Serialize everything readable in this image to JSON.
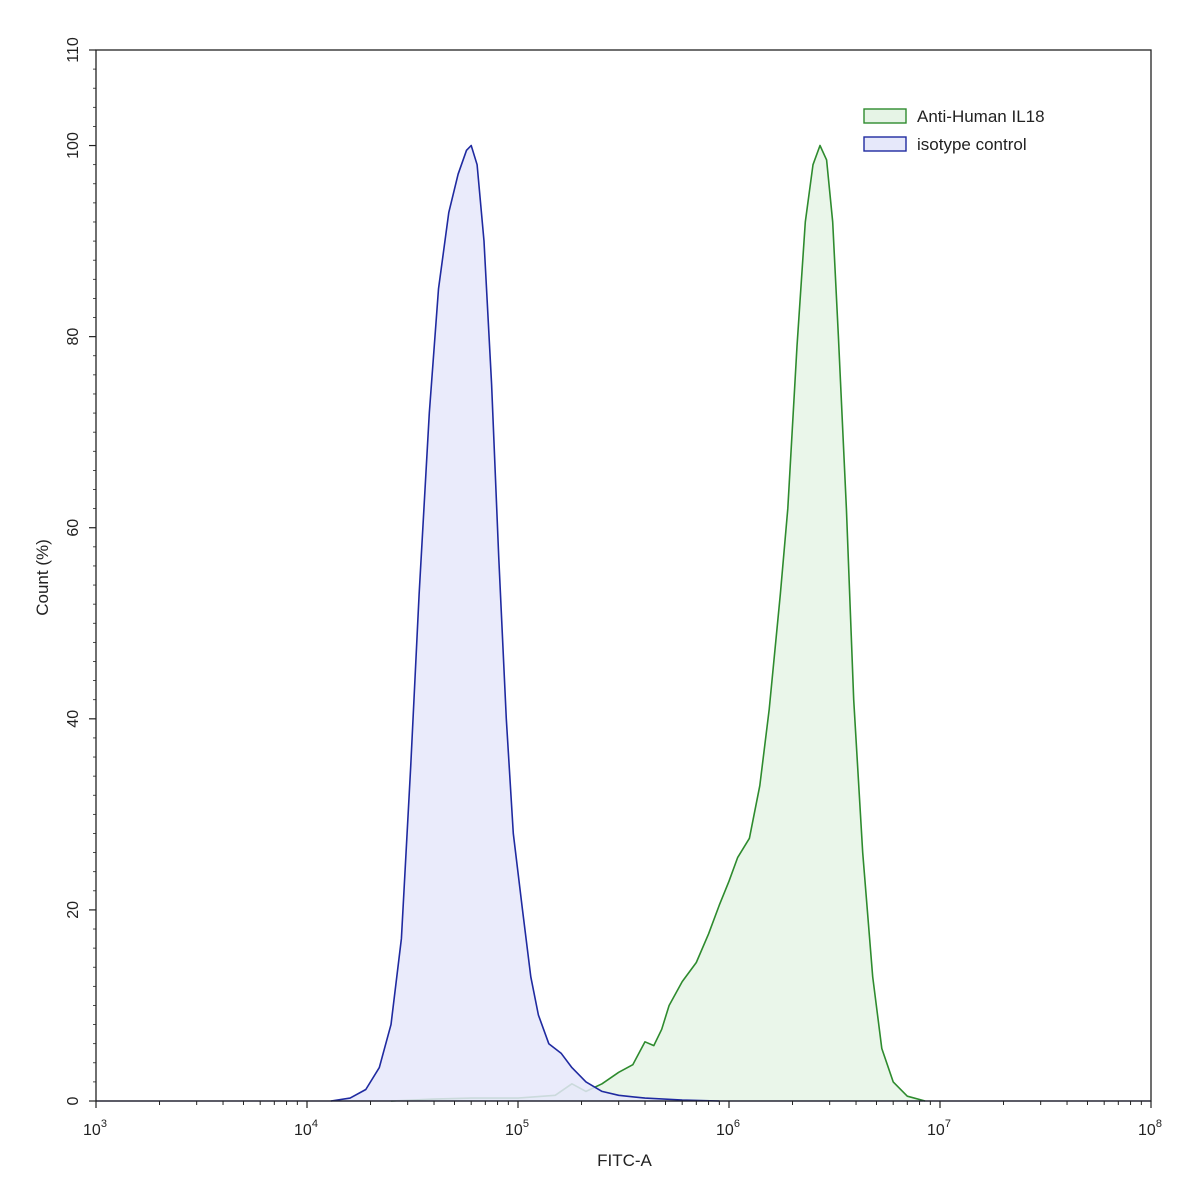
{
  "chart_data": {
    "type": "area",
    "xlabel": "FITC-A",
    "ylabel": "Count (%)",
    "x_scale": "log10",
    "xlim": [
      1000,
      100000000
    ],
    "ylim": [
      0,
      110
    ],
    "x_ticks": [
      {
        "value": 1000,
        "base": "10",
        "exp": "3"
      },
      {
        "value": 10000,
        "base": "10",
        "exp": "4"
      },
      {
        "value": 100000,
        "base": "10",
        "exp": "5"
      },
      {
        "value": 1000000,
        "base": "10",
        "exp": "6"
      },
      {
        "value": 10000000,
        "base": "10",
        "exp": "7"
      },
      {
        "value": 100000000,
        "base": "10",
        "exp": "8"
      }
    ],
    "y_ticks": [
      0,
      20,
      40,
      60,
      80,
      100,
      110
    ],
    "grid": false,
    "legend_position": "top-right",
    "series": [
      {
        "name": "Anti-Human IL18",
        "stroke": "#2e8b2e",
        "fill": "#e6f4e6",
        "points": [
          [
            25000,
            0
          ],
          [
            40000,
            0.2
          ],
          [
            60000,
            0.3
          ],
          [
            100000,
            0.3
          ],
          [
            150000,
            0.6
          ],
          [
            180000,
            1.8
          ],
          [
            210000,
            1.0
          ],
          [
            250000,
            1.8
          ],
          [
            300000,
            3.0
          ],
          [
            350000,
            3.8
          ],
          [
            400000,
            6.2
          ],
          [
            440000,
            5.8
          ],
          [
            480000,
            7.5
          ],
          [
            520000,
            10.0
          ],
          [
            600000,
            12.5
          ],
          [
            700000,
            14.5
          ],
          [
            800000,
            17.5
          ],
          [
            900000,
            20.5
          ],
          [
            1000000,
            23.0
          ],
          [
            1100000,
            25.5
          ],
          [
            1250000,
            27.5
          ],
          [
            1400000,
            33.0
          ],
          [
            1550000,
            41.0
          ],
          [
            1750000,
            53.0
          ],
          [
            1900000,
            62.0
          ],
          [
            2100000,
            79.0
          ],
          [
            2300000,
            92.0
          ],
          [
            2500000,
            98.0
          ],
          [
            2700000,
            100.0
          ],
          [
            2900000,
            98.5
          ],
          [
            3100000,
            92.0
          ],
          [
            3300000,
            80.0
          ],
          [
            3600000,
            62.0
          ],
          [
            3900000,
            42.0
          ],
          [
            4300000,
            26.0
          ],
          [
            4800000,
            13.0
          ],
          [
            5300000,
            5.5
          ],
          [
            6000000,
            2.0
          ],
          [
            7000000,
            0.5
          ],
          [
            8500000,
            0
          ]
        ]
      },
      {
        "name": "isotype control",
        "stroke": "#1f2aa0",
        "fill": "#e6e8fa",
        "points": [
          [
            13000,
            0
          ],
          [
            16000,
            0.3
          ],
          [
            19000,
            1.2
          ],
          [
            22000,
            3.5
          ],
          [
            25000,
            8.0
          ],
          [
            28000,
            17.0
          ],
          [
            31000,
            35.0
          ],
          [
            34000,
            53.0
          ],
          [
            38000,
            72.0
          ],
          [
            42000,
            85.0
          ],
          [
            47000,
            93.0
          ],
          [
            52000,
            97.0
          ],
          [
            57000,
            99.5
          ],
          [
            60000,
            100.0
          ],
          [
            64000,
            98.0
          ],
          [
            69000,
            90.0
          ],
          [
            75000,
            75.0
          ],
          [
            81000,
            57.0
          ],
          [
            88000,
            40.0
          ],
          [
            95000,
            28.0
          ],
          [
            105000,
            20.0
          ],
          [
            115000,
            13.0
          ],
          [
            125000,
            9.0
          ],
          [
            140000,
            6.0
          ],
          [
            160000,
            5.0
          ],
          [
            180000,
            3.5
          ],
          [
            210000,
            2.0
          ],
          [
            250000,
            1.0
          ],
          [
            300000,
            0.6
          ],
          [
            400000,
            0.3
          ],
          [
            600000,
            0.1
          ],
          [
            900000,
            0
          ]
        ]
      }
    ]
  },
  "legend": {
    "items": [
      {
        "label": "Anti-Human IL18",
        "stroke": "#2e8b2e",
        "fill": "#e6f4e6"
      },
      {
        "label": "isotype control",
        "stroke": "#1f2aa0",
        "fill": "#e6e8fa"
      }
    ]
  },
  "colors": {
    "axis": "#222222",
    "background": "#ffffff"
  }
}
